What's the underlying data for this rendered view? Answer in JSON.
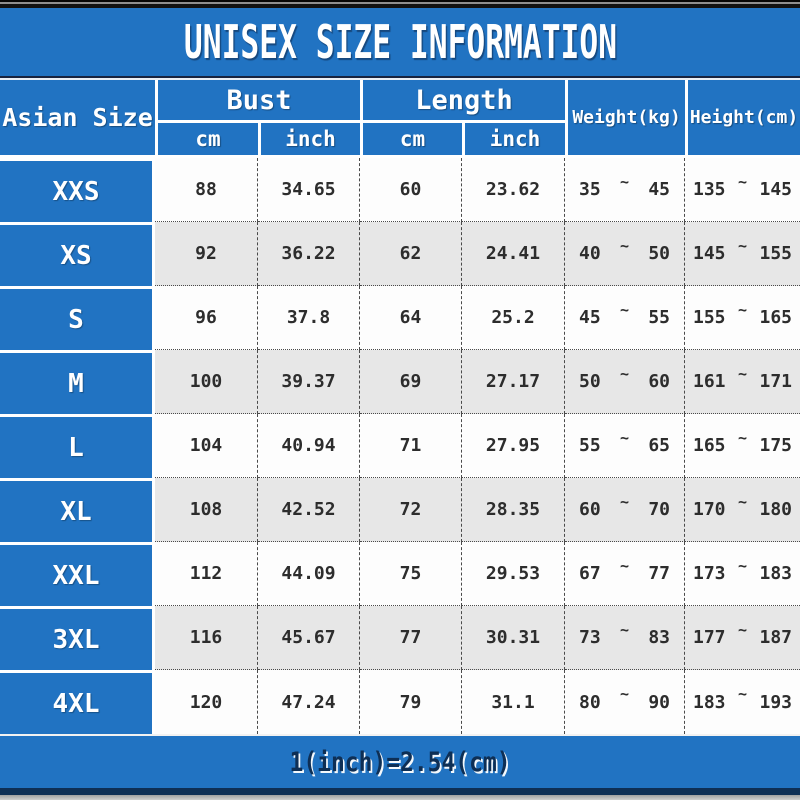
{
  "colors": {
    "blue": "#2173c2",
    "row": "#fdfdfd",
    "row_alt": "#e7e7e7",
    "text_dark": "#2d2d2d",
    "footer_text": "#0e2f55"
  },
  "chart_data": {
    "type": "table",
    "title": "UNISEX SIZE INFORMATION",
    "note": "1(inch)=2.54(cm)",
    "range_separator": "~",
    "header": {
      "size_column": "Asian Size",
      "groups": [
        {
          "label": "Bust",
          "subs": [
            "cm",
            "inch"
          ]
        },
        {
          "label": "Length",
          "subs": [
            "cm",
            "inch"
          ]
        }
      ],
      "spanning": [
        "Weight(kg)",
        "Height(cm)"
      ]
    },
    "rows": [
      {
        "size": "XXS",
        "bust_cm": "88",
        "bust_inch": "34.65",
        "length_cm": "60",
        "length_inch": "23.62",
        "weight_kg": {
          "from": "35",
          "to": "45"
        },
        "height_cm": {
          "from": "135",
          "to": "145"
        }
      },
      {
        "size": "XS",
        "bust_cm": "92",
        "bust_inch": "36.22",
        "length_cm": "62",
        "length_inch": "24.41",
        "weight_kg": {
          "from": "40",
          "to": "50"
        },
        "height_cm": {
          "from": "145",
          "to": "155"
        }
      },
      {
        "size": "S",
        "bust_cm": "96",
        "bust_inch": "37.8",
        "length_cm": "64",
        "length_inch": "25.2",
        "weight_kg": {
          "from": "45",
          "to": "55"
        },
        "height_cm": {
          "from": "155",
          "to": "165"
        }
      },
      {
        "size": "M",
        "bust_cm": "100",
        "bust_inch": "39.37",
        "length_cm": "69",
        "length_inch": "27.17",
        "weight_kg": {
          "from": "50",
          "to": "60"
        },
        "height_cm": {
          "from": "161",
          "to": "171"
        }
      },
      {
        "size": "L",
        "bust_cm": "104",
        "bust_inch": "40.94",
        "length_cm": "71",
        "length_inch": "27.95",
        "weight_kg": {
          "from": "55",
          "to": "65"
        },
        "height_cm": {
          "from": "165",
          "to": "175"
        }
      },
      {
        "size": "XL",
        "bust_cm": "108",
        "bust_inch": "42.52",
        "length_cm": "72",
        "length_inch": "28.35",
        "weight_kg": {
          "from": "60",
          "to": "70"
        },
        "height_cm": {
          "from": "170",
          "to": "180"
        }
      },
      {
        "size": "XXL",
        "bust_cm": "112",
        "bust_inch": "44.09",
        "length_cm": "75",
        "length_inch": "29.53",
        "weight_kg": {
          "from": "67",
          "to": "77"
        },
        "height_cm": {
          "from": "173",
          "to": "183"
        }
      },
      {
        "size": "3XL",
        "bust_cm": "116",
        "bust_inch": "45.67",
        "length_cm": "77",
        "length_inch": "30.31",
        "weight_kg": {
          "from": "73",
          "to": "83"
        },
        "height_cm": {
          "from": "177",
          "to": "187"
        }
      },
      {
        "size": "4XL",
        "bust_cm": "120",
        "bust_inch": "47.24",
        "length_cm": "79",
        "length_inch": "31.1",
        "weight_kg": {
          "from": "80",
          "to": "90"
        },
        "height_cm": {
          "from": "183",
          "to": "193"
        }
      }
    ]
  }
}
